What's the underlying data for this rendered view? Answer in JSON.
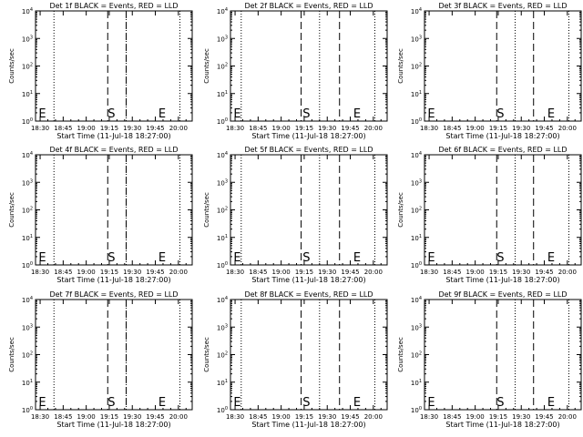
{
  "chart_data": [
    {
      "type": "line",
      "title": "Det 1f BLACK = Events, RED = LLD",
      "xlabel": "Start Time (11-Jul-18 18:27:00)",
      "ylabel": "Counts/sec",
      "xticks": [
        "18:30",
        "18:45",
        "19:00",
        "19:15",
        "19:30",
        "19:45",
        "20:00"
      ],
      "xlim_minutes": [
        27,
        129
      ],
      "yscale": "log",
      "ylim": [
        1,
        10000
      ],
      "yticks": [
        "10^0",
        "10^1",
        "10^2",
        "10^3",
        "10^4"
      ],
      "dotted_lines_minutes": [
        39,
        86,
        121
      ],
      "dashed_lines_minutes": [
        74,
        86
      ],
      "markers": [
        {
          "label": "E",
          "x_minutes": 29
        },
        {
          "label": "S",
          "x_minutes": 74
        },
        {
          "label": "E",
          "x_minutes": 107
        }
      ],
      "series": []
    },
    {
      "type": "line",
      "title": "Det 2f BLACK = Events, RED = LLD",
      "xlabel": "Start Time (11-Jul-18 18:27:00)",
      "ylabel": "Counts/sec",
      "xticks": [
        "18:30",
        "18:45",
        "19:00",
        "19:15",
        "19:30",
        "19:45",
        "20:00"
      ],
      "xlim_minutes": [
        27,
        129
      ],
      "yscale": "log",
      "ylim": [
        1,
        10000
      ],
      "yticks": [
        "10^0",
        "10^1",
        "10^2",
        "10^3",
        "10^4"
      ],
      "dotted_lines_minutes": [
        34,
        85,
        121
      ],
      "dashed_lines_minutes": [
        73,
        98
      ],
      "markers": [
        {
          "label": "E",
          "x_minutes": 29
        },
        {
          "label": "S",
          "x_minutes": 74
        },
        {
          "label": "E",
          "x_minutes": 107
        }
      ],
      "series": []
    },
    {
      "type": "line",
      "title": "Det 3f BLACK = Events, RED = LLD",
      "xlabel": "Start Time (11-Jul-18 18:27:00)",
      "ylabel": "Counts/sec",
      "xticks": [
        "18:30",
        "18:45",
        "19:00",
        "19:15",
        "19:30",
        "19:45",
        "20:00"
      ],
      "xlim_minutes": [
        27,
        129
      ],
      "yscale": "log",
      "ylim": [
        1,
        10000
      ],
      "yticks": [
        "10^0",
        "10^1",
        "10^2",
        "10^3",
        "10^4"
      ],
      "dotted_lines_minutes": [
        86,
        121
      ],
      "dashed_lines_minutes": [
        74,
        98
      ],
      "markers": [
        {
          "label": "E",
          "x_minutes": 29
        },
        {
          "label": "S",
          "x_minutes": 74
        },
        {
          "label": "E",
          "x_minutes": 107
        }
      ],
      "series": []
    },
    {
      "type": "line",
      "title": "Det 4f BLACK = Events, RED = LLD",
      "xlabel": "Start Time (11-Jul-18 18:27:00)",
      "ylabel": "Counts/sec",
      "xticks": [
        "18:30",
        "18:45",
        "19:00",
        "19:15",
        "19:30",
        "19:45",
        "20:00"
      ],
      "xlim_minutes": [
        27,
        129
      ],
      "yscale": "log",
      "ylim": [
        1,
        10000
      ],
      "yticks": [
        "10^0",
        "10^1",
        "10^2",
        "10^3",
        "10^4"
      ],
      "dotted_lines_minutes": [
        39,
        86,
        121
      ],
      "dashed_lines_minutes": [
        74,
        86
      ],
      "markers": [
        {
          "label": "E",
          "x_minutes": 29
        },
        {
          "label": "S",
          "x_minutes": 74
        },
        {
          "label": "E",
          "x_minutes": 107
        }
      ],
      "series": []
    },
    {
      "type": "line",
      "title": "Det 5f BLACK = Events, RED = LLD",
      "xlabel": "Start Time (11-Jul-18 18:27:00)",
      "ylabel": "Counts/sec",
      "xticks": [
        "18:30",
        "18:45",
        "19:00",
        "19:15",
        "19:30",
        "19:45",
        "20:00"
      ],
      "xlim_minutes": [
        27,
        129
      ],
      "yscale": "log",
      "ylim": [
        1,
        10000
      ],
      "yticks": [
        "10^0",
        "10^1",
        "10^2",
        "10^3",
        "10^4"
      ],
      "dotted_lines_minutes": [
        34,
        85,
        121
      ],
      "dashed_lines_minutes": [
        73,
        98
      ],
      "markers": [
        {
          "label": "E",
          "x_minutes": 29
        },
        {
          "label": "S",
          "x_minutes": 74
        },
        {
          "label": "E",
          "x_minutes": 107
        }
      ],
      "series": []
    },
    {
      "type": "line",
      "title": "Det 6f BLACK = Events, RED = LLD",
      "xlabel": "Start Time (11-Jul-18 18:27:00)",
      "ylabel": "Counts/sec",
      "xticks": [
        "18:30",
        "18:45",
        "19:00",
        "19:15",
        "19:30",
        "19:45",
        "20:00"
      ],
      "xlim_minutes": [
        27,
        129
      ],
      "yscale": "log",
      "ylim": [
        1,
        10000
      ],
      "yticks": [
        "10^0",
        "10^1",
        "10^2",
        "10^3",
        "10^4"
      ],
      "dotted_lines_minutes": [
        86,
        121
      ],
      "dashed_lines_minutes": [
        74,
        98
      ],
      "markers": [
        {
          "label": "E",
          "x_minutes": 29
        },
        {
          "label": "S",
          "x_minutes": 74
        },
        {
          "label": "E",
          "x_minutes": 107
        }
      ],
      "series": []
    },
    {
      "type": "line",
      "title": "Det 7f BLACK = Events, RED = LLD",
      "xlabel": "Start Time (11-Jul-18 18:27:00)",
      "ylabel": "Counts/sec",
      "xticks": [
        "18:30",
        "18:45",
        "19:00",
        "19:15",
        "19:30",
        "19:45",
        "20:00"
      ],
      "xlim_minutes": [
        27,
        129
      ],
      "yscale": "log",
      "ylim": [
        1,
        10000
      ],
      "yticks": [
        "10^0",
        "10^1",
        "10^2",
        "10^3",
        "10^4"
      ],
      "dotted_lines_minutes": [
        39,
        86,
        121
      ],
      "dashed_lines_minutes": [
        74,
        86
      ],
      "markers": [
        {
          "label": "E",
          "x_minutes": 29
        },
        {
          "label": "S",
          "x_minutes": 74
        },
        {
          "label": "E",
          "x_minutes": 107
        }
      ],
      "series": []
    },
    {
      "type": "line",
      "title": "Det 8f BLACK = Events, RED = LLD",
      "xlabel": "Start Time (11-Jul-18 18:27:00)",
      "ylabel": "Counts/sec",
      "xticks": [
        "18:30",
        "18:45",
        "19:00",
        "19:15",
        "19:30",
        "19:45",
        "20:00"
      ],
      "xlim_minutes": [
        27,
        129
      ],
      "yscale": "log",
      "ylim": [
        1,
        10000
      ],
      "yticks": [
        "10^0",
        "10^1",
        "10^2",
        "10^3",
        "10^4"
      ],
      "dotted_lines_minutes": [
        34,
        85,
        121
      ],
      "dashed_lines_minutes": [
        73,
        98
      ],
      "markers": [
        {
          "label": "E",
          "x_minutes": 29
        },
        {
          "label": "S",
          "x_minutes": 74
        },
        {
          "label": "E",
          "x_minutes": 107
        }
      ],
      "series": []
    },
    {
      "type": "line",
      "title": "Det 9f BLACK = Events, RED = LLD",
      "xlabel": "Start Time (11-Jul-18 18:27:00)",
      "ylabel": "Counts/sec",
      "xticks": [
        "18:30",
        "18:45",
        "19:00",
        "19:15",
        "19:30",
        "19:45",
        "20:00"
      ],
      "xlim_minutes": [
        27,
        129
      ],
      "yscale": "log",
      "ylim": [
        1,
        10000
      ],
      "yticks": [
        "10^0",
        "10^1",
        "10^2",
        "10^3",
        "10^4"
      ],
      "dotted_lines_minutes": [
        86,
        121
      ],
      "dashed_lines_minutes": [
        74,
        98
      ],
      "markers": [
        {
          "label": "E",
          "x_minutes": 29
        },
        {
          "label": "S",
          "x_minutes": 74
        },
        {
          "label": "E",
          "x_minutes": 107
        }
      ],
      "series": []
    }
  ]
}
